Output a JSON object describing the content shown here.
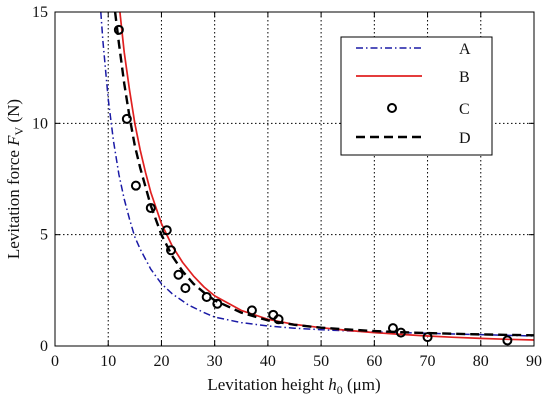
{
  "chart_data": {
    "type": "line",
    "title": "",
    "xlabel": {
      "prefix": "Levitation height ",
      "symbol": "h",
      "subscript": "0",
      "unit": " (μm)"
    },
    "ylabel": {
      "prefix": "Levitation force ",
      "symbol": "F",
      "subscript": "V",
      "unit": " (N)"
    },
    "xlim": [
      0,
      90
    ],
    "ylim": [
      0,
      15
    ],
    "xticks": [
      "0",
      "10",
      "20",
      "30",
      "40",
      "50",
      "60",
      "70",
      "80",
      "90"
    ],
    "yticks": [
      "0",
      "5",
      "10",
      "15"
    ],
    "grid": true,
    "legend_position": "top-right",
    "series": [
      {
        "name": "A",
        "kind": "line",
        "style": "dash-dot",
        "color": "#1a1aa6",
        "x": [
          8.6,
          9,
          10,
          11,
          12,
          13,
          14,
          15,
          16,
          18,
          20,
          22,
          25,
          28,
          30,
          35,
          40,
          45,
          50,
          55,
          60,
          65,
          70,
          75,
          80,
          85,
          90
        ],
        "y": [
          15.0,
          13.7,
          11.1,
          9.2,
          7.7,
          6.6,
          5.7,
          4.9,
          4.35,
          3.45,
          2.8,
          2.35,
          1.85,
          1.5,
          1.3,
          1.05,
          0.9,
          0.8,
          0.73,
          0.68,
          0.63,
          0.6,
          0.57,
          0.54,
          0.51,
          0.48,
          0.45
        ]
      },
      {
        "name": "B",
        "kind": "line",
        "style": "solid",
        "color": "#e02020",
        "x": [
          12.2,
          13,
          14,
          15,
          16,
          17,
          18,
          20,
          22,
          24,
          26,
          28,
          30,
          35,
          40,
          45,
          50,
          55,
          60,
          65,
          70,
          75,
          80,
          85,
          90
        ],
        "y": [
          15.0,
          13.2,
          11.5,
          10.0,
          8.8,
          7.8,
          6.9,
          5.5,
          4.5,
          3.75,
          3.15,
          2.65,
          2.25,
          1.6,
          1.2,
          0.97,
          0.82,
          0.7,
          0.6,
          0.52,
          0.45,
          0.39,
          0.34,
          0.3,
          0.27
        ]
      },
      {
        "name": "C",
        "kind": "scatter",
        "style": "circle",
        "color": "#000000",
        "x": [
          12,
          13.5,
          15.2,
          18,
          21,
          21.8,
          23.2,
          24.5,
          28.5,
          30.5,
          37,
          41,
          42,
          63.5,
          65,
          70,
          85
        ],
        "y": [
          14.2,
          10.2,
          7.2,
          6.2,
          5.2,
          4.3,
          3.2,
          2.6,
          2.2,
          1.9,
          1.6,
          1.4,
          1.2,
          0.8,
          0.6,
          0.4,
          0.25
        ]
      },
      {
        "name": "D",
        "kind": "line",
        "style": "dashed",
        "color": "#000000",
        "x": [
          11.3,
          12,
          13,
          14,
          15,
          16,
          18,
          20,
          22,
          24,
          26,
          28,
          30,
          35,
          40,
          45,
          50,
          55,
          60,
          65,
          70,
          75,
          80,
          85,
          90
        ],
        "y": [
          15.0,
          13.6,
          11.8,
          10.3,
          9.0,
          8.0,
          6.3,
          5.0,
          4.05,
          3.35,
          2.8,
          2.4,
          2.05,
          1.5,
          1.15,
          0.95,
          0.82,
          0.74,
          0.67,
          0.62,
          0.58,
          0.55,
          0.52,
          0.5,
          0.48
        ]
      }
    ]
  }
}
